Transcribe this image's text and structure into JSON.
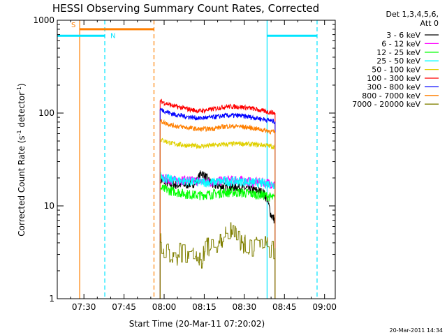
{
  "chart_data": {
    "type": "line",
    "title": "HESSI Observing Summary Count Rates, Corrected",
    "xlabel": "Start Time (20-Mar-11 07:20:02)",
    "ylabel_main": "Corrected Count Rate (s",
    "ylabel_sup1": "-1",
    "ylabel_mid": " detector",
    "ylabel_sup2": "-1",
    "ylabel_end": ")",
    "x_tick_labels": [
      "07:30",
      "07:45",
      "08:00",
      "08:15",
      "08:30",
      "08:45",
      "09:00"
    ],
    "x_ticks_min": [
      30,
      45,
      60,
      75,
      90,
      105,
      120
    ],
    "xlim_min": [
      20.03,
      124.0
    ],
    "y_scale": "log",
    "ylim": [
      1,
      1000
    ],
    "y_tick_labels": [
      "1",
      "10",
      "100",
      "1000"
    ],
    "y_tick_values": [
      1,
      10,
      100,
      1000
    ],
    "legend_header": [
      "Det 1,3,4,5,6,",
      "Att 0"
    ],
    "legend_position": "right-outside",
    "timestamp": "20-Mar-2011 14:34",
    "annotations": {
      "saa_label": "S",
      "night_label": "N",
      "saa_color": "#ff7f00",
      "night_color": "#00e5ff",
      "saa_bar": {
        "x_start_min": 28.4,
        "x_end_min": 56.2,
        "y": 800
      },
      "night_bars": [
        {
          "x_start_min": 20.03,
          "x_end_min": 37.8,
          "y": 680
        },
        {
          "x_start_min": 98.5,
          "x_end_min": 117.2,
          "y": 680
        }
      ],
      "vertical_lines": [
        {
          "x_min": 28.4,
          "color": "#ff7f00",
          "style": "solid"
        },
        {
          "x_min": 37.8,
          "color": "#00e5ff",
          "style": "dashed"
        },
        {
          "x_min": 56.2,
          "color": "#ff7f00",
          "style": "dashed"
        },
        {
          "x_min": 98.5,
          "color": "#00e5ff",
          "style": "solid"
        },
        {
          "x_min": 117.2,
          "color": "#00e5ff",
          "style": "dashed"
        }
      ]
    },
    "data_window_min": [
      58.5,
      101.5
    ],
    "series": [
      {
        "name": "3 - 6 keV",
        "color": "#000000",
        "x": [
          58.5,
          63,
          68,
          72,
          74,
          78,
          83,
          88,
          93,
          97,
          98.5,
          100,
          101.5
        ],
        "y": [
          19,
          17,
          17,
          18,
          23,
          17,
          16,
          16,
          15,
          14,
          12,
          8,
          7
        ]
      },
      {
        "name": "6 - 12 keV",
        "color": "#ff00ff",
        "x": [
          58.5,
          63,
          68,
          73,
          78,
          83,
          88,
          93,
          98,
          101.5
        ],
        "y": [
          20,
          19,
          19,
          18.5,
          18,
          19,
          19,
          18,
          18,
          17
        ]
      },
      {
        "name": "12 - 25 keV",
        "color": "#00ff00",
        "x": [
          58.5,
          63,
          68,
          73,
          78,
          83,
          88,
          93,
          98,
          101.5
        ],
        "y": [
          15.5,
          14.5,
          13.5,
          13,
          13.5,
          14,
          14,
          13.5,
          13,
          12
        ]
      },
      {
        "name": "25 - 50 keV",
        "color": "#00ffff",
        "x": [
          58.5,
          63,
          68,
          73,
          78,
          83,
          88,
          93,
          98,
          101.5
        ],
        "y": [
          21,
          19,
          18.5,
          18,
          18,
          18.5,
          18.5,
          18,
          17.5,
          17
        ]
      },
      {
        "name": "50 - 100 keV",
        "color": "#e0d000",
        "x": [
          58.5,
          63,
          68,
          73,
          78,
          83,
          88,
          93,
          98,
          101.5
        ],
        "y": [
          52,
          47,
          45,
          44,
          45,
          46,
          47,
          46,
          45,
          43
        ]
      },
      {
        "name": "100 - 300 keV",
        "color": "#ff0000",
        "x": [
          58.5,
          63,
          68,
          73,
          78,
          83,
          88,
          93,
          98,
          101.5
        ],
        "y": [
          135,
          120,
          112,
          105,
          110,
          118,
          117,
          112,
          104,
          100
        ]
      },
      {
        "name": "300 - 800 keV",
        "color": "#0000ff",
        "x": [
          58.5,
          63,
          68,
          73,
          78,
          83,
          88,
          93,
          98,
          101.5
        ],
        "y": [
          110,
          98,
          92,
          88,
          90,
          94,
          94,
          90,
          85,
          81
        ]
      },
      {
        "name": "800 - 7000 keV",
        "color": "#ff7f00",
        "x": [
          58.5,
          63,
          68,
          73,
          78,
          83,
          88,
          93,
          98,
          101.5
        ],
        "y": [
          82,
          74,
          70,
          67,
          68,
          72,
          72,
          69,
          65,
          62
        ]
      },
      {
        "name": "7000 - 20000 keV",
        "color": "#808000",
        "x": [
          58.5,
          61,
          64,
          66,
          68,
          70,
          73,
          76,
          79,
          82,
          85,
          88,
          91,
          94,
          97,
          100,
          101.5
        ],
        "y": [
          4.2,
          3.2,
          2.6,
          3.6,
          2.6,
          3.4,
          2.4,
          3.8,
          3.3,
          4.6,
          5.5,
          4.5,
          3.8,
          3.6,
          4.2,
          3.4,
          3.5
        ]
      }
    ]
  }
}
